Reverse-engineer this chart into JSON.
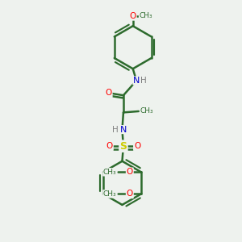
{
  "background_color": "#eef2ee",
  "line_color": "#2d6b2d",
  "bond_width": 1.8,
  "atom_colors": {
    "O": "#ff0000",
    "N": "#0000cc",
    "S": "#cccc00",
    "H": "#808080",
    "C": "#2d6b2d"
  },
  "figsize": [
    3.0,
    3.0
  ],
  "dpi": 100,
  "xlim": [
    0,
    10
  ],
  "ylim": [
    0,
    10
  ]
}
